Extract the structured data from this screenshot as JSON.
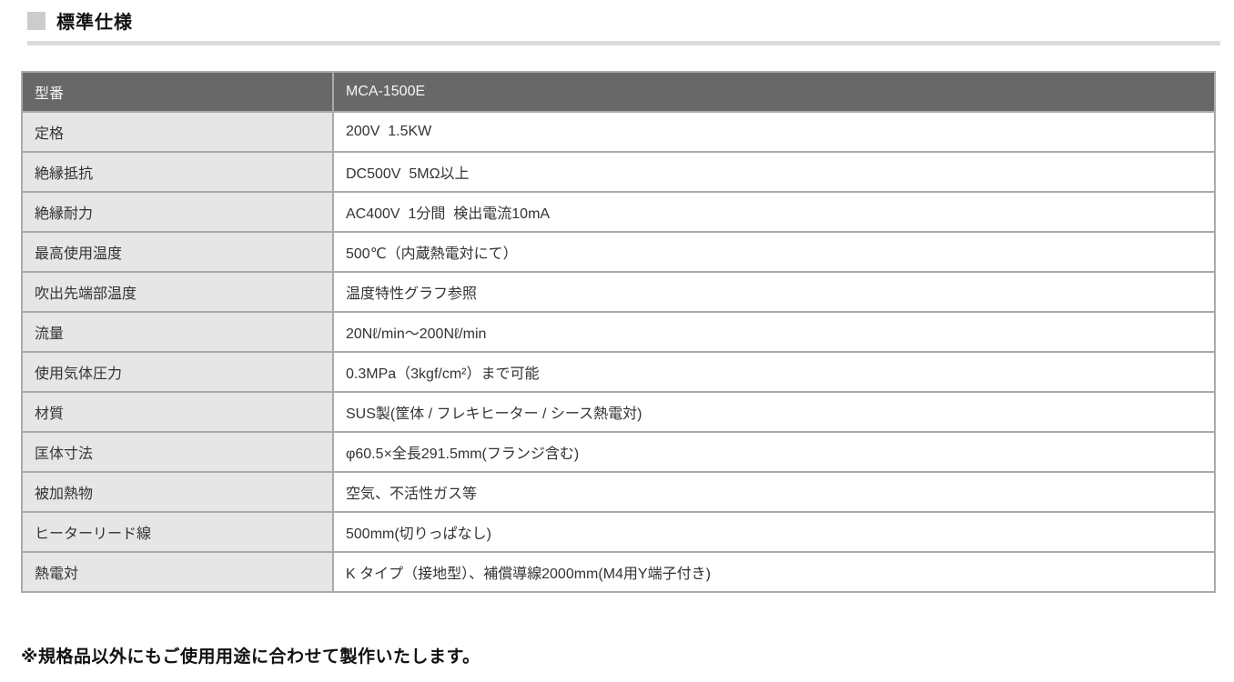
{
  "title": "標準仕様",
  "footnote": "※規格品以外にもご使用用途に合わせて製作いたします。",
  "colors": {
    "header_bg": "#686868",
    "header_text": "#f5f5f5",
    "label_cell_bg": "#e6e6e6",
    "value_cell_bg": "#ffffff",
    "table_border": "#aaaaaa",
    "title_rule": "#dcdcdc",
    "title_bullet": "#cccccc",
    "body_text": "#333333"
  },
  "table": {
    "header": {
      "label": "型番",
      "value": "MCA-1500E"
    },
    "rows": [
      {
        "label": "定格",
        "value": "200V  1.5KW"
      },
      {
        "label": "絶縁抵抗",
        "value": "DC500V  5MΩ以上"
      },
      {
        "label": "絶縁耐力",
        "value": "AC400V  1分間  検出電流10mA"
      },
      {
        "label": "最高使用温度",
        "value": "500℃（内蔵熱電対にて）"
      },
      {
        "label": "吹出先端部温度",
        "value": "温度特性グラフ参照"
      },
      {
        "label": "流量",
        "value": "20Nℓ/min～200Nℓ/min"
      },
      {
        "label": "使用気体圧力",
        "value": "0.3MPa（3kgf/cm²）まで可能"
      },
      {
        "label": "材質",
        "value": "SUS製(筐体 / フレキヒーター / シース熱電対)"
      },
      {
        "label": "匡体寸法",
        "value": "φ60.5×全長291.5mm(フランジ含む)"
      },
      {
        "label": "被加熱物",
        "value": "空気、不活性ガス等"
      },
      {
        "label": "ヒーターリード線",
        "value": "500mm(切りっぱなし)"
      },
      {
        "label": "熱電対",
        "value": "K タイプ（接地型）、補償導線2000mm(M4用Y端子付き)"
      }
    ]
  }
}
